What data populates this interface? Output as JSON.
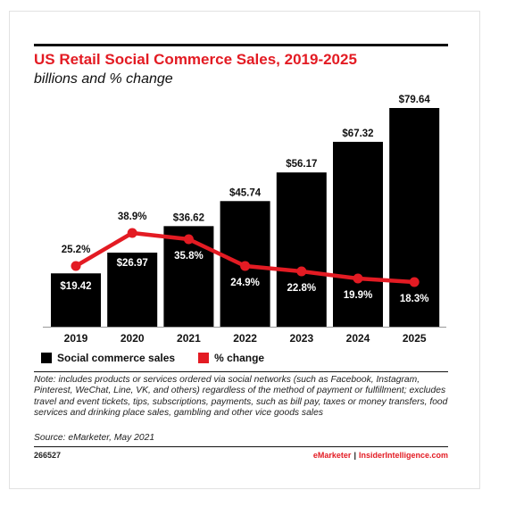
{
  "title": "US Retail Social Commerce Sales, 2019-2025",
  "subtitle": "billions and % change",
  "legend": {
    "bars": "Social commerce sales",
    "line": "% change"
  },
  "note": "Note: includes products or services ordered via social networks (such as Facebook, Instagram, Pinterest, WeChat, Line, VK, and others) regardless of the method of payment or fulfillment; excludes travel and event tickets, tips, subscriptions, payments, such as bill pay, taxes or money transfers, food services and drinking place sales, gambling and other vice goods sales",
  "source": "Source: eMarketer, May 2021",
  "chart_id": "266527",
  "brand": {
    "emarketer": "eMarketer",
    "separator": "|",
    "insider": "InsiderIntelligence.com"
  },
  "colors": {
    "bar": "#000000",
    "line": "#e31b23",
    "title": "#e31b23"
  },
  "chart_data": {
    "type": "bar",
    "categories": [
      "2019",
      "2020",
      "2021",
      "2022",
      "2023",
      "2024",
      "2025"
    ],
    "series": [
      {
        "name": "Social commerce sales",
        "type": "bar",
        "values": [
          19.42,
          26.97,
          36.62,
          45.74,
          56.17,
          67.32,
          79.64
        ],
        "labels": [
          "$19.42",
          "$26.97",
          "$36.62",
          "$45.74",
          "$56.17",
          "$67.32",
          "$79.64"
        ]
      },
      {
        "name": "% change",
        "type": "line",
        "values": [
          25.2,
          38.9,
          35.8,
          24.9,
          22.8,
          19.9,
          18.3
        ],
        "labels": [
          "25.2%",
          "38.9%",
          "35.8%",
          "24.9%",
          "22.8%",
          "19.9%",
          "18.3%"
        ]
      }
    ],
    "grid": false,
    "legend_position": "bottom-left"
  }
}
